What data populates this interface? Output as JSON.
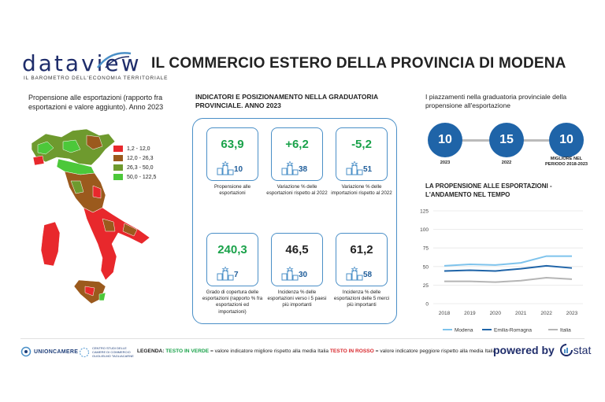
{
  "header": {
    "logo_text": "dataview",
    "logo_subtitle": "IL BAROMETRO DELL'ECONOMIA TERRITORIALE",
    "title": "IL COMMERCIO ESTERO DELLA PROVINCIA DI MODENA"
  },
  "map": {
    "title": "Propensione alle esportazioni (rapporto fra esportazioni e valore aggiunto). Anno 2023",
    "legend": [
      {
        "label": "1,2 - 12,0",
        "color": "#e8282c"
      },
      {
        "label": "12,0 - 26,3",
        "color": "#9b5a1d"
      },
      {
        "label": "26,3 - 50,0",
        "color": "#6e9a2e"
      },
      {
        "label": "50,0 - 122,5",
        "color": "#4cc83a"
      }
    ]
  },
  "indicators": {
    "title": "INDICATORI E POSIZIONAMENTO NELLA GRADUATORIA PROVINCIALE. ANNO 2023",
    "cards": [
      {
        "value": "63,9",
        "rank": "10",
        "color": "green",
        "caption": "Propensione alle esportazioni"
      },
      {
        "value": "+6,2",
        "rank": "38",
        "color": "green",
        "caption": "Variazione % delle esportazioni rispetto al 2022"
      },
      {
        "value": "-5,2",
        "rank": "51",
        "color": "green",
        "caption": "Variazione % delle importazioni rispetto al 2022"
      },
      {
        "value": "240,3",
        "rank": "7",
        "color": "green",
        "caption": "Grado di copertura delle esportazioni (rapporto % fra esportazioni ed importazioni)"
      },
      {
        "value": "46,5",
        "rank": "30",
        "color": "black",
        "caption": "Incidenza % delle esportazioni verso i 5 paesi più importanti"
      },
      {
        "value": "61,2",
        "rank": "58",
        "color": "black",
        "caption": "Incidenza % delle esportazioni delle 5 merci più importanti"
      }
    ]
  },
  "ranking": {
    "title": "I piazzamenti nella graduatoria provinciale della propensione all'esportazione",
    "items": [
      {
        "value": "10",
        "label": "2023"
      },
      {
        "value": "15",
        "label": "2022"
      },
      {
        "value": "10",
        "label": "MIGLIORE NEL PERIODO 2018-2023"
      }
    ]
  },
  "chart_title": "LA PROPENSIONE ALLE ESPORTAZIONI - L'ANDAMENTO NEL TEMPO",
  "chart_data": {
    "type": "line",
    "x": [
      "2018",
      "2019",
      "2020",
      "2021",
      "2022",
      "2023"
    ],
    "ylim": [
      0,
      125
    ],
    "yticks": [
      "0",
      "25",
      "50",
      "75",
      "100",
      "125"
    ],
    "grid": true,
    "legend_position": "bottom",
    "series": [
      {
        "name": "Modena",
        "color": "#7ec3ec",
        "values": [
          51,
          53,
          52,
          55,
          64,
          63.9
        ]
      },
      {
        "name": "Emilia-Romagna",
        "color": "#1f64a8",
        "values": [
          44,
          45,
          44,
          47,
          51,
          48
        ]
      },
      {
        "name": "Italia",
        "color": "#b5b5b5",
        "values": [
          30,
          30,
          29,
          31,
          35,
          33
        ]
      }
    ]
  },
  "footer": {
    "unioncamere": "UNIONCAMERE",
    "centro_studi": "CENTRO STUDI DELLE CAMERE DI COMMERCIO GUGLIELMO TAGLIACARNE",
    "legend_label": "LEGENDA:",
    "legend_green": "TESTO IN VERDE",
    "legend_green_desc": " = valore indicatore migliore rispetto alla media Italia ",
    "legend_red": "TESTO IN ROSSO",
    "legend_red_desc": " = valore indicatore peggiore rispetto alla media Italia",
    "powered_by": "powered by",
    "powered_brand": "stat"
  }
}
